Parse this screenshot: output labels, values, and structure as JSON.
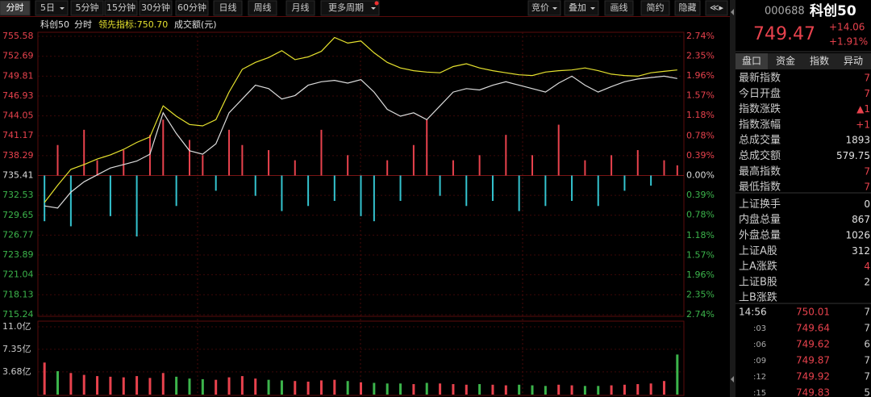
{
  "toolbar": {
    "left": [
      {
        "label": "分时",
        "active": true
      },
      {
        "label": "5日",
        "dropdown": true
      },
      {
        "label": "5分钟"
      },
      {
        "label": "15分钟"
      },
      {
        "label": "30分钟"
      },
      {
        "label": "60分钟"
      },
      {
        "label": "日线"
      },
      {
        "label": "周线"
      },
      {
        "label": "月线"
      },
      {
        "label": "更多周期",
        "dropdown": true
      }
    ],
    "right": [
      {
        "label": "竞价",
        "dropdown": true
      },
      {
        "label": "叠加",
        "dropdown": true
      },
      {
        "label": "画线"
      },
      {
        "label": "简约"
      },
      {
        "label": "隐藏"
      },
      {
        "label": "≪▸"
      }
    ]
  },
  "chart_data": [
    {
      "type": "line",
      "title": "科创50",
      "subtitle": "分时",
      "ylim": [
        715.24,
        755.58
      ],
      "yticks": [
        755.58,
        752.69,
        749.81,
        746.93,
        744.05,
        741.17,
        738.29,
        735.41,
        732.53,
        729.65,
        726.77,
        723.89,
        721.04,
        718.13,
        715.24
      ],
      "y2lim": [
        -2.74,
        2.74
      ],
      "y2ticks": [
        {
          "value": 2.74,
          "label": "2.74%"
        },
        {
          "value": 2.35,
          "label": "2.35%"
        },
        {
          "value": 1.96,
          "label": "1.96%"
        },
        {
          "value": 1.57,
          "label": "1.57%"
        },
        {
          "value": 1.18,
          "label": "1.18%"
        },
        {
          "value": 0.78,
          "label": "0.78%"
        },
        {
          "value": 0.39,
          "label": "0.39%"
        },
        {
          "value": 0,
          "label": "0.00%"
        },
        {
          "value": -0.39,
          "label": "0.39%"
        },
        {
          "value": -0.78,
          "label": "0.78%"
        },
        {
          "value": -1.18,
          "label": "1.18%"
        },
        {
          "value": -1.57,
          "label": "1.57%"
        },
        {
          "value": -1.96,
          "label": "1.96%"
        },
        {
          "value": -2.35,
          "label": "2.35%"
        },
        {
          "value": -2.74,
          "label": "2.74%"
        }
      ],
      "grid": true,
      "series": [
        {
          "type": "line",
          "color": "#dcdcdc",
          "values": [
            731.0,
            730.7,
            733.0,
            734.5,
            735.5,
            736.5,
            737.0,
            737.5,
            738.5,
            744.5,
            741.5,
            739.0,
            738.5,
            740.0,
            744.5,
            746.5,
            748.5,
            748.0,
            746.5,
            747.0,
            748.5,
            749.0,
            749.2,
            748.8,
            749.3,
            747.5,
            745.0,
            744.0,
            744.5,
            743.5,
            745.5,
            747.5,
            748.0,
            747.8,
            748.5,
            749.0,
            748.5,
            748.0,
            747.5,
            748.8,
            749.8,
            748.5,
            747.5,
            748.3,
            749.0,
            749.4,
            749.6,
            749.8,
            749.47
          ]
        },
        {
          "type": "line",
          "name": "领先指标:750.70",
          "color": "#e6e22e",
          "values": [
            731.5,
            734.0,
            736.3,
            737.0,
            737.8,
            738.4,
            739.2,
            740.2,
            741.0,
            745.5,
            744.0,
            742.8,
            742.6,
            743.5,
            747.5,
            750.8,
            751.8,
            752.5,
            753.5,
            752.2,
            752.6,
            753.4,
            755.4,
            754.6,
            754.9,
            753.2,
            751.8,
            751.0,
            750.6,
            750.4,
            750.3,
            751.2,
            751.6,
            751.0,
            750.6,
            750.3,
            750.0,
            749.9,
            750.4,
            750.6,
            750.7,
            751.0,
            750.6,
            750.1,
            749.9,
            749.8,
            750.3,
            750.5,
            750.7
          ]
        },
        {
          "type": "bar",
          "axis": "y2",
          "up_color": "#e8424d",
          "down_color": "#34c3cf",
          "values": [
            -0.9,
            0.6,
            -1.0,
            0.9,
            0.3,
            -0.8,
            0.5,
            -1.2,
            0.8,
            1.1,
            -0.6,
            0.7,
            0.4,
            -0.3,
            0.9,
            0.6,
            -0.4,
            0.5,
            -0.7,
            0.3,
            -0.6,
            0.9,
            -0.5,
            0.4,
            -0.8,
            -0.9,
            0.3,
            -0.5,
            0.6,
            1.1,
            -0.4,
            0.3,
            -0.6,
            0.4,
            -0.5,
            0.8,
            -0.7,
            0.4,
            -0.6,
            1.0,
            -0.5,
            0.3,
            -0.6,
            0.4,
            -0.3,
            0.5,
            -0.2,
            0.3,
            0.2
          ]
        }
      ]
    },
    {
      "type": "bar",
      "title": "成交额(元)",
      "ylim": [
        0,
        11.0
      ],
      "yticks": [
        {
          "value": 11.0,
          "label": "11.0亿"
        },
        {
          "value": 7.35,
          "label": "7.35亿"
        },
        {
          "value": 3.68,
          "label": "3.68亿"
        }
      ],
      "up_color": "#e8424d",
      "down_color": "#3cb44b",
      "values": [
        5.2,
        3.8,
        3.5,
        3.2,
        3.0,
        2.9,
        2.8,
        3.0,
        2.7,
        3.5,
        2.9,
        2.6,
        2.5,
        2.4,
        2.8,
        3.0,
        2.6,
        2.4,
        2.3,
        2.2,
        2.1,
        2.3,
        2.4,
        2.2,
        2.0,
        1.9,
        1.8,
        1.8,
        1.7,
        1.9,
        1.8,
        1.7,
        1.6,
        1.7,
        1.6,
        1.5,
        1.6,
        1.5,
        1.4,
        1.6,
        1.5,
        1.4,
        1.4,
        1.5,
        1.6,
        1.7,
        1.8,
        2.2,
        6.5
      ]
    }
  ],
  "quote": {
    "code": "000688",
    "name": "科创50",
    "price": "749.47",
    "change": "+14.06",
    "pct": "+1.91%"
  },
  "tabs": [
    "盘口",
    "资金",
    "指数",
    "异动"
  ],
  "stats": [
    {
      "label": "最新指数",
      "value": "7",
      "color": "#e8424d"
    },
    {
      "label": "今日开盘",
      "value": "7",
      "color": "#e8424d"
    },
    {
      "label": "指数涨跌",
      "value": "▲1",
      "color": "#e8424d"
    },
    {
      "label": "指数涨幅",
      "value": "+1",
      "color": "#e8424d"
    },
    {
      "label": "总成交量",
      "value": "1893",
      "color": "#e0e0e0"
    },
    {
      "label": "总成交额",
      "value": "579.75",
      "color": "#e0e0e0"
    },
    {
      "label": "最高指数",
      "value": "7",
      "color": "#e8424d"
    },
    {
      "label": "最低指数",
      "value": "7",
      "color": "#e8424d"
    },
    {
      "label": "上证换手",
      "value": "0",
      "color": "#e0e0e0"
    },
    {
      "label": "内盘总量",
      "value": "867",
      "color": "#e0e0e0"
    },
    {
      "label": "外盘总量",
      "value": "1026",
      "color": "#e0e0e0"
    },
    {
      "label": "上证A股",
      "value": "312",
      "color": "#e0e0e0"
    },
    {
      "label": "上A涨跌",
      "value": "4",
      "color": "#e8424d"
    },
    {
      "label": "上证B股",
      "value": "2",
      "color": "#e0e0e0"
    },
    {
      "label": "上B涨跌"
    }
  ],
  "trades": [
    [
      "14:56",
      "750.01",
      "7"
    ],
    [
      ":03",
      "749.64",
      "7"
    ],
    [
      ":06",
      "749.62",
      "6"
    ],
    [
      ":09",
      "749.87",
      "7"
    ],
    [
      ":12",
      "749.92",
      "7"
    ],
    [
      ":15",
      "749.83",
      "5"
    ]
  ]
}
